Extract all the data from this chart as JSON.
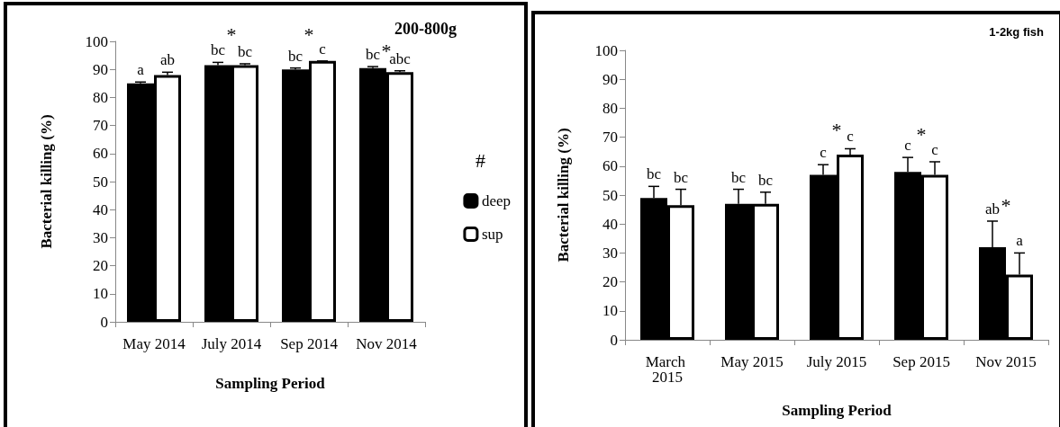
{
  "chart_data": [
    {
      "type": "bar",
      "title": "200-800g",
      "xlabel": "Sampling Period",
      "ylabel": "Bacterial killing (%)",
      "legend_title": "#",
      "legend": "right",
      "grid": false,
      "categories": [
        "May 2014",
        "July 2014",
        "Sep 2014",
        "Nov 2014"
      ],
      "ylim": [
        0,
        100
      ],
      "yticks": [
        0,
        10,
        20,
        30,
        40,
        50,
        60,
        70,
        80,
        90,
        100
      ],
      "series": [
        {
          "name": "deep",
          "color": "#000000",
          "values": [
            85,
            91.5,
            90,
            90.5
          ],
          "errors": [
            0.5,
            1,
            0.5,
            0.5
          ],
          "value_labels": [
            "a",
            "bc",
            "bc",
            "bc"
          ]
        },
        {
          "name": "sup",
          "color": "#ffffff",
          "values": [
            88,
            91.5,
            93,
            89
          ],
          "errors": [
            1,
            0.5,
            0,
            0.5
          ],
          "value_labels": [
            "ab",
            "bc",
            "c",
            "abc"
          ]
        }
      ],
      "annotations": [
        "*",
        "*",
        "*"
      ]
    },
    {
      "type": "bar",
      "title": "1-2kg fish",
      "xlabel": "Sampling Period",
      "ylabel": "Bacterial killing (%)",
      "legend": false,
      "grid": false,
      "categories": [
        "March 2015",
        "May 2015",
        "July 2015",
        "Sep 2015",
        "Nov 2015"
      ],
      "ylim": [
        0,
        100
      ],
      "yticks": [
        0,
        10,
        20,
        30,
        40,
        50,
        60,
        70,
        80,
        90,
        100
      ],
      "series": [
        {
          "color": "#000000",
          "values": [
            49,
            47,
            57,
            58,
            32
          ],
          "errors": [
            4,
            5,
            3.5,
            5,
            9
          ],
          "value_labels": [
            "bc",
            "bc",
            "c",
            "c",
            "ab"
          ]
        },
        {
          "color": "#ffffff",
          "values": [
            46.5,
            47,
            64,
            57,
            22.5
          ],
          "errors": [
            5.5,
            4,
            2,
            4.5,
            7.5
          ],
          "value_labels": [
            "bc",
            "bc",
            "c",
            "c",
            "a"
          ]
        }
      ],
      "annotations": [
        "*",
        "*",
        "*"
      ]
    }
  ]
}
